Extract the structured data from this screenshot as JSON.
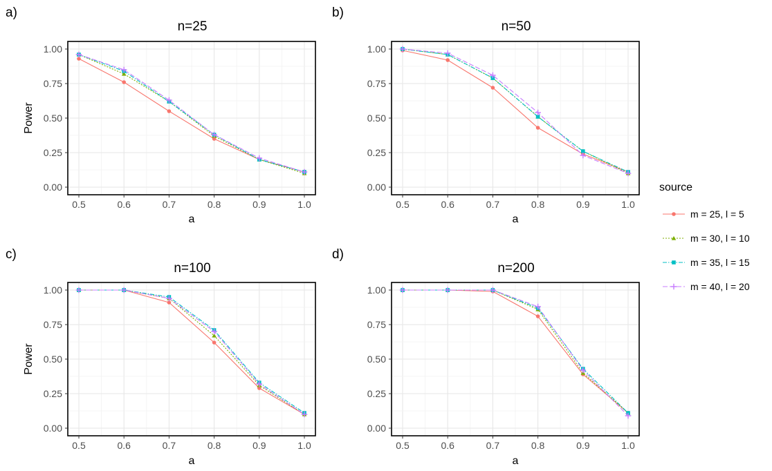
{
  "legend": {
    "title": "source",
    "entries": [
      {
        "label": "m = 25, l = 5",
        "color": "#F8766D",
        "shape": "circle",
        "dash": "solid"
      },
      {
        "label": "m = 30, l = 10",
        "color": "#7CAE00",
        "shape": "triangle",
        "dash": "dotted"
      },
      {
        "label": "m = 35, l = 15",
        "color": "#00BFC4",
        "shape": "square",
        "dash": "dashdot"
      },
      {
        "label": "m = 40, l = 20",
        "color": "#C77CFF",
        "shape": "plus",
        "dash": "longdash"
      }
    ],
    "placement": "right"
  },
  "chart_data": [
    {
      "panel_label": "a)",
      "type": "line",
      "title": "n=25",
      "xlabel": "a",
      "ylabel": "Power",
      "x": [
        0.5,
        0.6,
        0.7,
        0.8,
        0.9,
        1.0
      ],
      "xlim": [
        0.5,
        1.0
      ],
      "ylim": [
        0,
        1
      ],
      "xticks": [
        "0.5",
        "0.6",
        "0.7",
        "0.8",
        "0.9",
        "1.0"
      ],
      "yticks": [
        "0.00",
        "0.25",
        "0.50",
        "0.75",
        "1.00"
      ],
      "grid": true,
      "series": [
        {
          "name": "m = 25, l = 5",
          "values": [
            0.93,
            0.76,
            0.55,
            0.35,
            0.2,
            0.11
          ]
        },
        {
          "name": "m = 30, l = 10",
          "values": [
            0.96,
            0.82,
            0.62,
            0.37,
            0.2,
            0.1
          ]
        },
        {
          "name": "m = 35, l = 15",
          "values": [
            0.96,
            0.84,
            0.62,
            0.38,
            0.2,
            0.11
          ]
        },
        {
          "name": "m = 40, l = 20",
          "values": [
            0.96,
            0.85,
            0.63,
            0.38,
            0.21,
            0.11
          ]
        }
      ]
    },
    {
      "panel_label": "b)",
      "type": "line",
      "title": "n=50",
      "xlabel": "a",
      "ylabel": "",
      "x": [
        0.5,
        0.6,
        0.7,
        0.8,
        0.9,
        1.0
      ],
      "xlim": [
        0.5,
        1.0
      ],
      "ylim": [
        0,
        1
      ],
      "xticks": [
        "0.5",
        "0.6",
        "0.7",
        "0.8",
        "0.9",
        "1.0"
      ],
      "yticks": [
        "0.00",
        "0.25",
        "0.50",
        "0.75",
        "1.00"
      ],
      "grid": true,
      "series": [
        {
          "name": "m = 25, l = 5",
          "values": [
            0.99,
            0.92,
            0.72,
            0.43,
            0.24,
            0.11
          ]
        },
        {
          "name": "m = 30, l = 10",
          "values": [
            1.0,
            0.96,
            0.79,
            0.51,
            0.26,
            0.1
          ]
        },
        {
          "name": "m = 35, l = 15",
          "values": [
            1.0,
            0.96,
            0.79,
            0.51,
            0.26,
            0.11
          ]
        },
        {
          "name": "m = 40, l = 20",
          "values": [
            1.0,
            0.97,
            0.81,
            0.54,
            0.23,
            0.1
          ]
        }
      ]
    },
    {
      "panel_label": "c)",
      "type": "line",
      "title": "n=100",
      "xlabel": "a",
      "ylabel": "Power",
      "x": [
        0.5,
        0.6,
        0.7,
        0.8,
        0.9,
        1.0
      ],
      "xlim": [
        0.5,
        1.0
      ],
      "ylim": [
        0,
        1
      ],
      "xticks": [
        "0.5",
        "0.6",
        "0.7",
        "0.8",
        "0.9",
        "1.0"
      ],
      "yticks": [
        "0.00",
        "0.25",
        "0.50",
        "0.75",
        "1.00"
      ],
      "grid": true,
      "series": [
        {
          "name": "m = 25, l = 5",
          "values": [
            1.0,
            1.0,
            0.91,
            0.62,
            0.29,
            0.1
          ]
        },
        {
          "name": "m = 30, l = 10",
          "values": [
            1.0,
            1.0,
            0.94,
            0.67,
            0.31,
            0.1
          ]
        },
        {
          "name": "m = 35, l = 15",
          "values": [
            1.0,
            1.0,
            0.95,
            0.71,
            0.33,
            0.11
          ]
        },
        {
          "name": "m = 40, l = 20",
          "values": [
            1.0,
            1.0,
            0.94,
            0.7,
            0.32,
            0.1
          ]
        }
      ]
    },
    {
      "panel_label": "d)",
      "type": "line",
      "title": "n=200",
      "xlabel": "a",
      "ylabel": "",
      "x": [
        0.5,
        0.6,
        0.7,
        0.8,
        0.9,
        1.0
      ],
      "xlim": [
        0.5,
        1.0
      ],
      "ylim": [
        0,
        1
      ],
      "xticks": [
        "0.5",
        "0.6",
        "0.7",
        "0.8",
        "0.9",
        "1.0"
      ],
      "yticks": [
        "0.00",
        "0.25",
        "0.50",
        "0.75",
        "1.00"
      ],
      "grid": true,
      "series": [
        {
          "name": "m = 25, l = 5",
          "values": [
            1.0,
            1.0,
            0.99,
            0.81,
            0.39,
            0.11
          ]
        },
        {
          "name": "m = 30, l = 10",
          "values": [
            1.0,
            1.0,
            1.0,
            0.86,
            0.4,
            0.11
          ]
        },
        {
          "name": "m = 35, l = 15",
          "values": [
            1.0,
            1.0,
            1.0,
            0.87,
            0.43,
            0.11
          ]
        },
        {
          "name": "m = 40, l = 20",
          "values": [
            1.0,
            1.0,
            1.0,
            0.88,
            0.42,
            0.09
          ]
        }
      ]
    }
  ]
}
